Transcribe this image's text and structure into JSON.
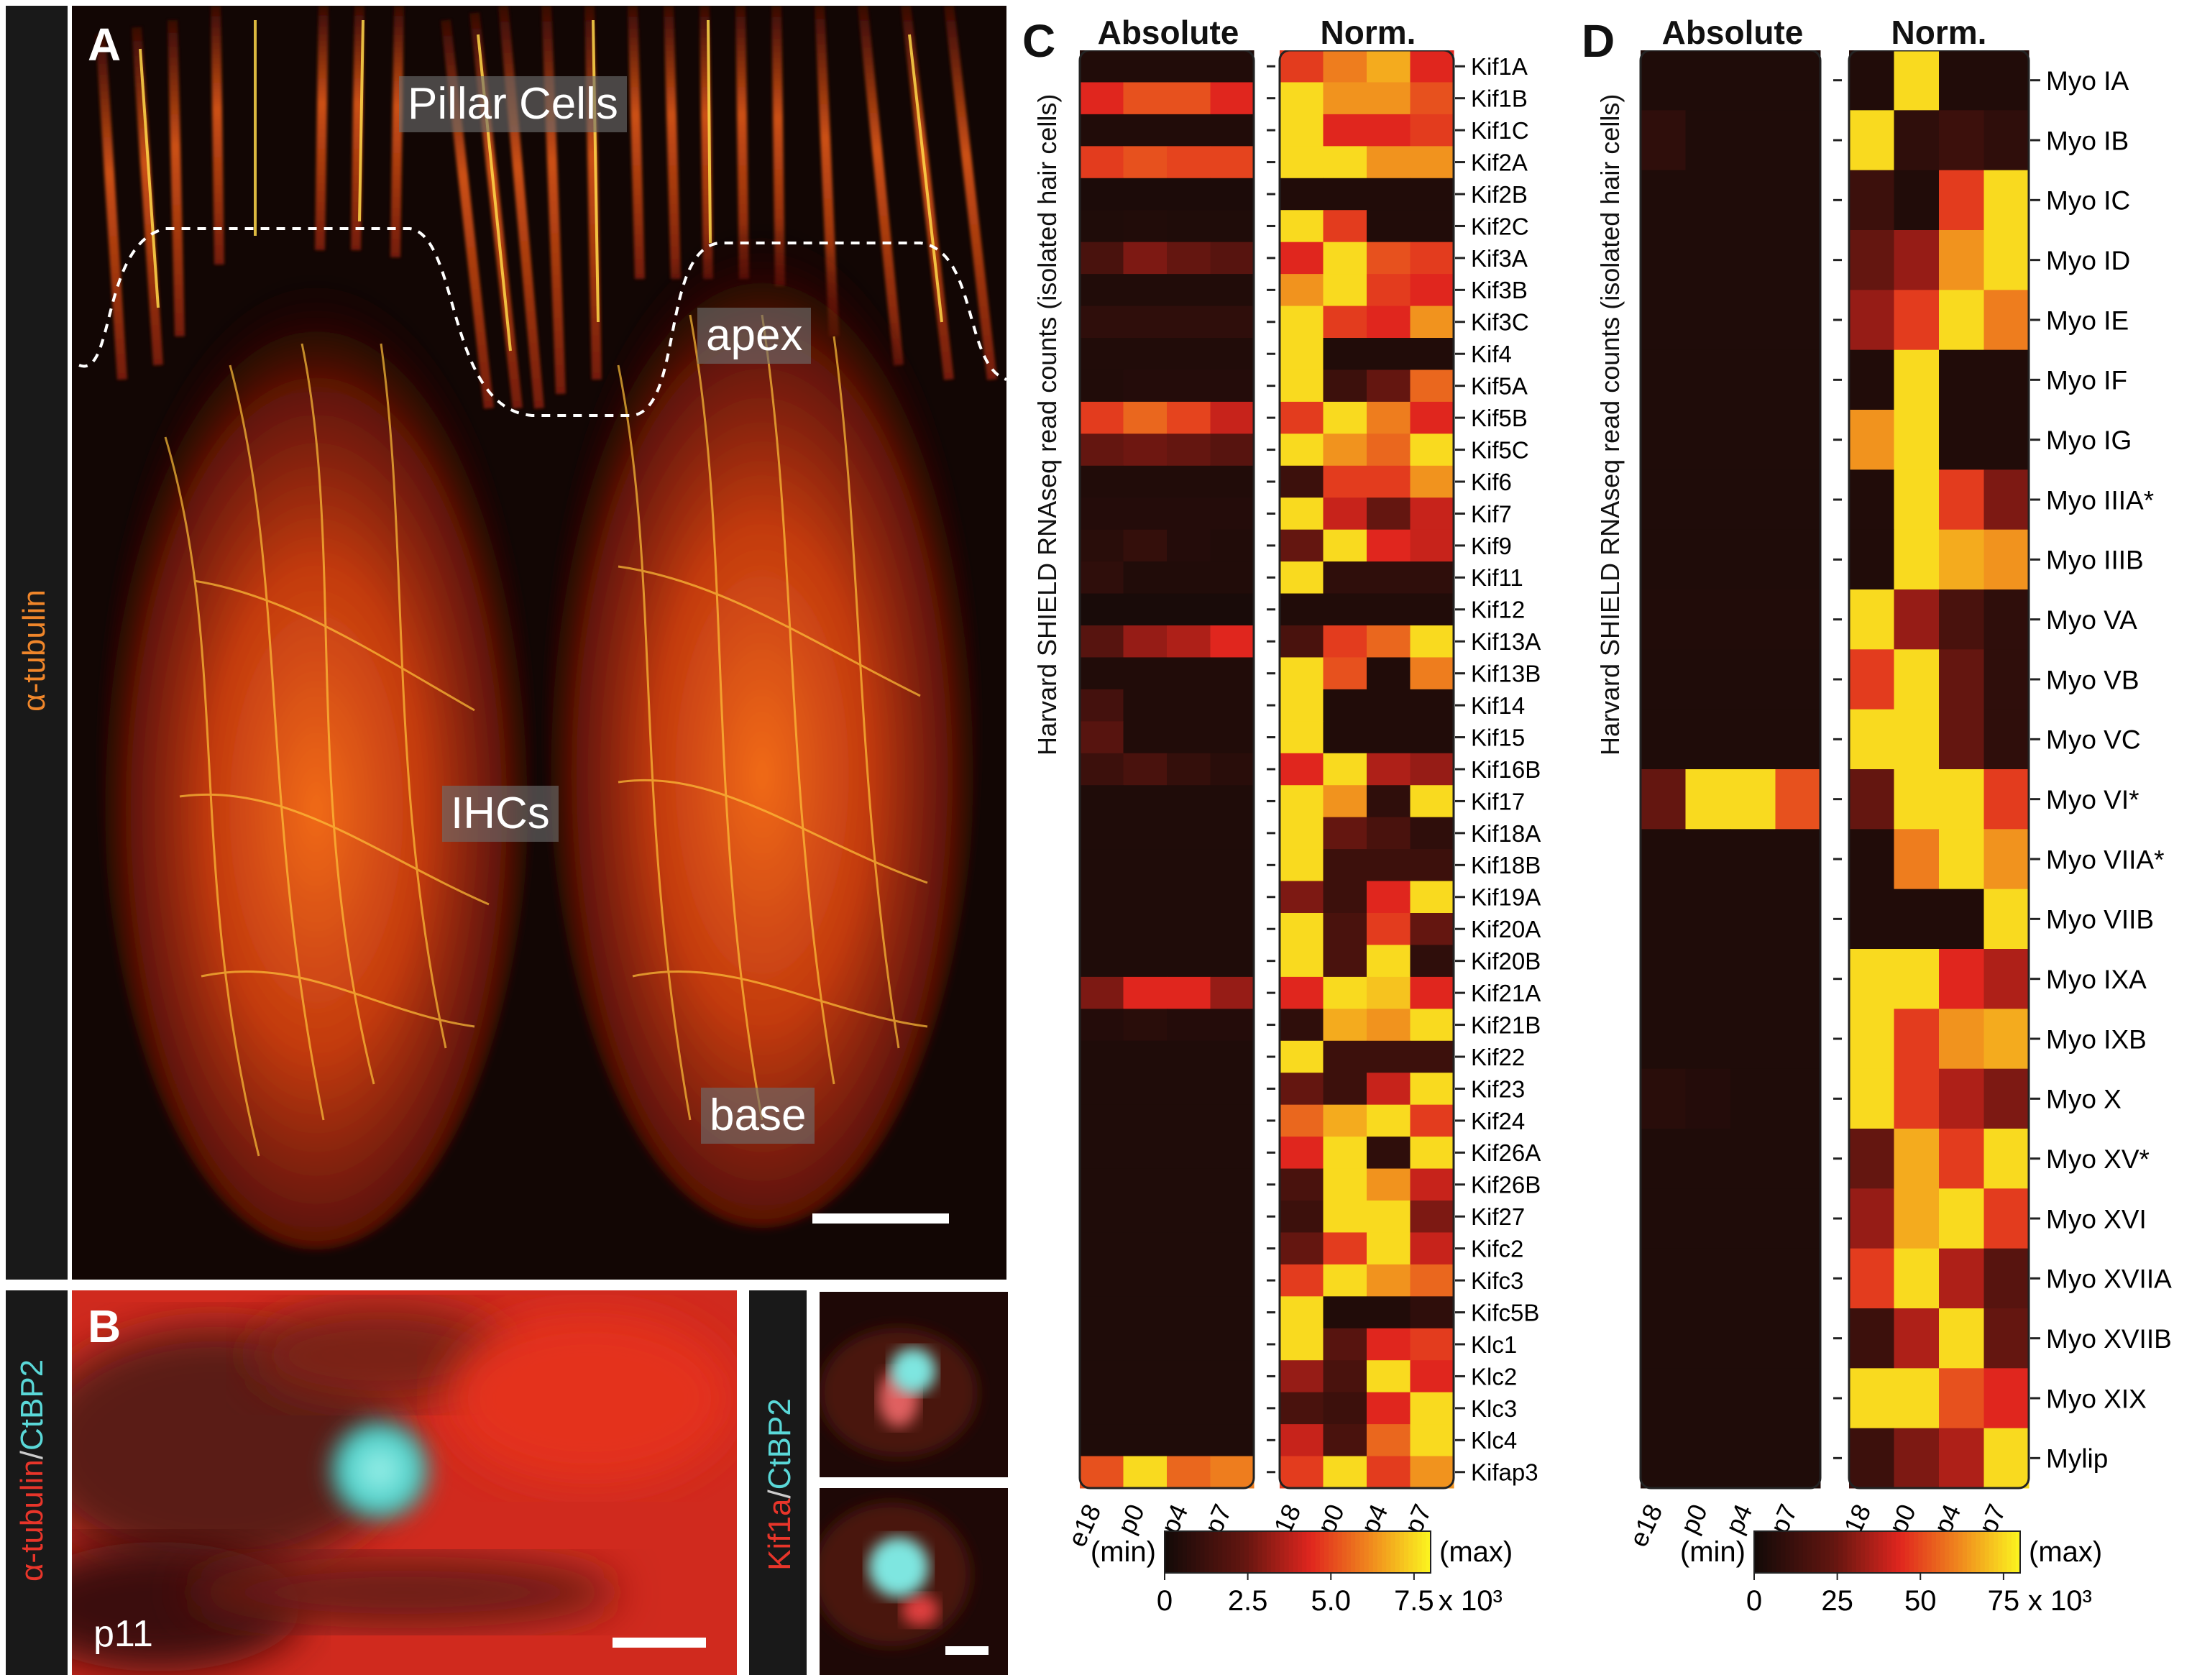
{
  "panels": {
    "A": {
      "letter": "A",
      "side_label": "α-tubulin",
      "labels": {
        "pillar": "Pillar Cells",
        "apex": "apex",
        "ihcs": "IHCs",
        "base": "base"
      }
    },
    "B": {
      "letter": "B",
      "side_label_red": "α-tubulin",
      "side_label_sep": "/",
      "side_label_cyan": "CtBP2",
      "age": "p11",
      "inset_label_red": "Kif1a",
      "inset_label_sep": "/",
      "inset_label_cyan": "CtBP2"
    },
    "C": {
      "letter": "C",
      "title_abs": "Absolute",
      "title_norm": "Norm."
    },
    "D": {
      "letter": "D",
      "title_abs": "Absolute",
      "title_norm": "Norm."
    }
  },
  "colors": {
    "low": "#1a0d0b",
    "mid_dark": "#7a1a12",
    "mid": "#e0261e",
    "high": "#f08a1e",
    "max": "#fbf21f"
  },
  "chart_data": [
    {
      "type": "heatmap",
      "panel": "C",
      "ylabel": "Harvard SHIELD RNAseq read counts (isolated hair cells)",
      "timepoints": [
        "e18",
        "p0",
        "p4",
        "p7"
      ],
      "colorbar": {
        "min_label": "(min)",
        "max_label": "(max)",
        "ticks": [
          "0",
          "2.5",
          "5.0",
          "7.5"
        ],
        "unit": "x 10³",
        "range": [
          0,
          8
        ]
      },
      "rows": [
        "Kif1A",
        "Kif1B",
        "Kif1C",
        "Kif2A",
        "Kif2B",
        "Kif2C",
        "Kif3A",
        "Kif3B",
        "Kif3C",
        "Kif4",
        "Kif5A",
        "Kif5B",
        "Kif5C",
        "Kif6",
        "Kif7",
        "Kif9",
        "Kif11",
        "Kif12",
        "Kif13A",
        "Kif13B",
        "Kif14",
        "Kif15",
        "Kif16B",
        "Kif17",
        "Kif18A",
        "Kif18B",
        "Kif19A",
        "Kif20A",
        "Kif20B",
        "Kif21A",
        "Kif21B",
        "Kif22",
        "Kif23",
        "Kif24",
        "Kif26A",
        "Kif26B",
        "Kif27",
        "Kifc2",
        "Kifc3",
        "Kifc5B",
        "Klc1",
        "Klc2",
        "Klc3",
        "Klc4",
        "Kifap3"
      ],
      "absolute": [
        [
          0.05,
          0.05,
          0.05,
          0.05
        ],
        [
          0.55,
          0.65,
          0.65,
          0.55
        ],
        [
          0.05,
          0.05,
          0.05,
          0.05
        ],
        [
          0.6,
          0.65,
          0.62,
          0.62
        ],
        [
          0.03,
          0.03,
          0.03,
          0.03
        ],
        [
          0.04,
          0.05,
          0.04,
          0.04
        ],
        [
          0.2,
          0.35,
          0.3,
          0.25
        ],
        [
          0.05,
          0.05,
          0.05,
          0.05
        ],
        [
          0.1,
          0.1,
          0.1,
          0.1
        ],
        [
          0.05,
          0.05,
          0.05,
          0.05
        ],
        [
          0.05,
          0.06,
          0.06,
          0.06
        ],
        [
          0.6,
          0.7,
          0.62,
          0.5
        ],
        [
          0.3,
          0.32,
          0.3,
          0.25
        ],
        [
          0.05,
          0.05,
          0.05,
          0.05
        ],
        [
          0.06,
          0.06,
          0.06,
          0.06
        ],
        [
          0.08,
          0.12,
          0.06,
          0.05
        ],
        [
          0.1,
          0.05,
          0.05,
          0.05
        ],
        [
          0.02,
          0.02,
          0.02,
          0.02
        ],
        [
          0.25,
          0.4,
          0.45,
          0.55
        ],
        [
          0.05,
          0.05,
          0.05,
          0.05
        ],
        [
          0.18,
          0.05,
          0.05,
          0.05
        ],
        [
          0.25,
          0.05,
          0.05,
          0.05
        ],
        [
          0.15,
          0.2,
          0.12,
          0.08
        ],
        [
          0.04,
          0.04,
          0.04,
          0.04
        ],
        [
          0.04,
          0.04,
          0.04,
          0.04
        ],
        [
          0.04,
          0.04,
          0.04,
          0.04
        ],
        [
          0.04,
          0.04,
          0.04,
          0.04
        ],
        [
          0.04,
          0.04,
          0.04,
          0.04
        ],
        [
          0.04,
          0.04,
          0.04,
          0.04
        ],
        [
          0.35,
          0.55,
          0.55,
          0.4
        ],
        [
          0.06,
          0.08,
          0.06,
          0.06
        ],
        [
          0.04,
          0.04,
          0.04,
          0.04
        ],
        [
          0.04,
          0.04,
          0.04,
          0.04
        ],
        [
          0.04,
          0.04,
          0.04,
          0.04
        ],
        [
          0.04,
          0.04,
          0.04,
          0.04
        ],
        [
          0.04,
          0.04,
          0.04,
          0.04
        ],
        [
          0.04,
          0.04,
          0.04,
          0.04
        ],
        [
          0.04,
          0.04,
          0.04,
          0.04
        ],
        [
          0.04,
          0.04,
          0.04,
          0.04
        ],
        [
          0.04,
          0.04,
          0.04,
          0.04
        ],
        [
          0.04,
          0.04,
          0.04,
          0.04
        ],
        [
          0.04,
          0.04,
          0.04,
          0.04
        ],
        [
          0.04,
          0.04,
          0.04,
          0.04
        ],
        [
          0.04,
          0.04,
          0.04,
          0.04
        ],
        [
          0.65,
          0.95,
          0.7,
          0.75
        ]
      ],
      "normalized": [
        [
          0.6,
          0.75,
          0.85,
          0.55
        ],
        [
          0.95,
          0.8,
          0.8,
          0.65
        ],
        [
          0.95,
          0.55,
          0.55,
          0.6
        ],
        [
          0.95,
          0.95,
          0.8,
          0.8
        ],
        [
          0.05,
          0.05,
          0.05,
          0.05
        ],
        [
          0.95,
          0.6,
          0.05,
          0.05
        ],
        [
          0.55,
          0.95,
          0.65,
          0.6
        ],
        [
          0.8,
          0.95,
          0.6,
          0.55
        ],
        [
          0.95,
          0.6,
          0.55,
          0.8
        ],
        [
          0.95,
          0.05,
          0.05,
          0.05
        ],
        [
          0.95,
          0.15,
          0.3,
          0.7
        ],
        [
          0.6,
          0.95,
          0.75,
          0.55
        ],
        [
          0.95,
          0.8,
          0.7,
          0.95
        ],
        [
          0.15,
          0.6,
          0.6,
          0.8
        ],
        [
          0.95,
          0.5,
          0.3,
          0.5
        ],
        [
          0.3,
          0.95,
          0.55,
          0.5
        ],
        [
          0.95,
          0.1,
          0.1,
          0.1
        ],
        [
          0.05,
          0.05,
          0.05,
          0.05
        ],
        [
          0.2,
          0.6,
          0.7,
          0.95
        ],
        [
          0.95,
          0.65,
          0.05,
          0.75
        ],
        [
          0.95,
          0.05,
          0.05,
          0.05
        ],
        [
          0.95,
          0.05,
          0.05,
          0.05
        ],
        [
          0.55,
          0.95,
          0.45,
          0.4
        ],
        [
          0.95,
          0.8,
          0.1,
          0.95
        ],
        [
          0.95,
          0.3,
          0.2,
          0.1
        ],
        [
          0.95,
          0.15,
          0.15,
          0.15
        ],
        [
          0.35,
          0.15,
          0.55,
          0.95
        ],
        [
          0.95,
          0.2,
          0.6,
          0.3
        ],
        [
          0.95,
          0.2,
          0.95,
          0.1
        ],
        [
          0.55,
          0.95,
          0.9,
          0.55
        ],
        [
          0.1,
          0.85,
          0.8,
          0.95
        ],
        [
          0.95,
          0.15,
          0.15,
          0.15
        ],
        [
          0.3,
          0.15,
          0.5,
          0.95
        ],
        [
          0.7,
          0.85,
          0.95,
          0.6
        ],
        [
          0.55,
          0.95,
          0.1,
          0.95
        ],
        [
          0.2,
          0.95,
          0.8,
          0.5
        ],
        [
          0.15,
          0.95,
          0.95,
          0.35
        ],
        [
          0.3,
          0.6,
          0.95,
          0.5
        ],
        [
          0.6,
          0.95,
          0.8,
          0.7
        ],
        [
          0.95,
          0.05,
          0.05,
          0.1
        ],
        [
          0.95,
          0.25,
          0.55,
          0.6
        ],
        [
          0.4,
          0.2,
          0.95,
          0.55
        ],
        [
          0.2,
          0.15,
          0.55,
          0.95
        ],
        [
          0.5,
          0.2,
          0.7,
          0.95
        ],
        [
          0.6,
          0.95,
          0.6,
          0.8
        ]
      ]
    },
    {
      "type": "heatmap",
      "panel": "D",
      "ylabel": "Harvard SHIELD RNAseq read counts (isolated hair cells)",
      "timepoints": [
        "e18",
        "p0",
        "p4",
        "p7"
      ],
      "colorbar": {
        "min_label": "(min)",
        "max_label": "(max)",
        "ticks": [
          "0",
          "25",
          "50",
          "75"
        ],
        "unit": "x 10³",
        "range": [
          0,
          80
        ]
      },
      "rows": [
        "Myo IA",
        "Myo IB",
        "Myo IC",
        "Myo ID",
        "Myo IE",
        "Myo IF",
        "Myo IG",
        "Myo IIIA*",
        "Myo IIIB",
        "Myo VA",
        "Myo VB",
        "Myo VC",
        "Myo VI*",
        "Myo VIIA*",
        "Myo VIIB",
        "Myo IXA",
        "Myo IXB",
        "Myo X",
        "Myo XV*",
        "Myo XVI",
        "Myo XVIIA",
        "Myo XVIIB",
        "Myo XIX",
        "Mylip"
      ],
      "absolute": [
        [
          0.04,
          0.04,
          0.04,
          0.04
        ],
        [
          0.1,
          0.04,
          0.04,
          0.04
        ],
        [
          0.04,
          0.04,
          0.04,
          0.04
        ],
        [
          0.04,
          0.04,
          0.04,
          0.04
        ],
        [
          0.04,
          0.04,
          0.04,
          0.04
        ],
        [
          0.04,
          0.04,
          0.04,
          0.04
        ],
        [
          0.04,
          0.04,
          0.04,
          0.04
        ],
        [
          0.04,
          0.04,
          0.04,
          0.04
        ],
        [
          0.04,
          0.04,
          0.04,
          0.04
        ],
        [
          0.05,
          0.05,
          0.05,
          0.05
        ],
        [
          0.04,
          0.04,
          0.04,
          0.04
        ],
        [
          0.04,
          0.04,
          0.04,
          0.04
        ],
        [
          0.3,
          0.95,
          0.95,
          0.65
        ],
        [
          0.04,
          0.04,
          0.04,
          0.04
        ],
        [
          0.04,
          0.04,
          0.04,
          0.04
        ],
        [
          0.04,
          0.04,
          0.04,
          0.04
        ],
        [
          0.04,
          0.04,
          0.04,
          0.04
        ],
        [
          0.08,
          0.06,
          0.04,
          0.04
        ],
        [
          0.04,
          0.04,
          0.04,
          0.04
        ],
        [
          0.04,
          0.04,
          0.04,
          0.04
        ],
        [
          0.04,
          0.04,
          0.04,
          0.04
        ],
        [
          0.04,
          0.04,
          0.04,
          0.04
        ],
        [
          0.04,
          0.04,
          0.04,
          0.04
        ],
        [
          0.04,
          0.04,
          0.04,
          0.04
        ]
      ],
      "normalized": [
        [
          0.05,
          0.95,
          0.05,
          0.05
        ],
        [
          0.95,
          0.1,
          0.15,
          0.1
        ],
        [
          0.15,
          0.05,
          0.6,
          0.95
        ],
        [
          0.3,
          0.4,
          0.8,
          0.95
        ],
        [
          0.4,
          0.6,
          0.95,
          0.75
        ],
        [
          0.05,
          0.95,
          0.05,
          0.05
        ],
        [
          0.8,
          0.95,
          0.05,
          0.05
        ],
        [
          0.05,
          0.95,
          0.6,
          0.35
        ],
        [
          0.05,
          0.95,
          0.85,
          0.8
        ],
        [
          0.95,
          0.4,
          0.2,
          0.1
        ],
        [
          0.6,
          0.95,
          0.3,
          0.1
        ],
        [
          0.95,
          0.95,
          0.3,
          0.1
        ],
        [
          0.3,
          0.95,
          0.95,
          0.6
        ],
        [
          0.05,
          0.75,
          0.95,
          0.8
        ],
        [
          0.05,
          0.05,
          0.05,
          0.95
        ],
        [
          0.95,
          0.95,
          0.55,
          0.45
        ],
        [
          0.95,
          0.6,
          0.8,
          0.85
        ],
        [
          0.95,
          0.6,
          0.45,
          0.35
        ],
        [
          0.3,
          0.85,
          0.6,
          0.95
        ],
        [
          0.4,
          0.85,
          0.95,
          0.6
        ],
        [
          0.6,
          0.95,
          0.45,
          0.25
        ],
        [
          0.15,
          0.45,
          0.95,
          0.3
        ],
        [
          0.95,
          0.95,
          0.65,
          0.55
        ],
        [
          0.15,
          0.35,
          0.45,
          0.95
        ]
      ]
    }
  ]
}
